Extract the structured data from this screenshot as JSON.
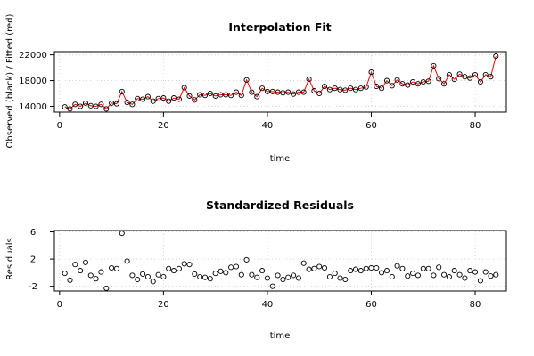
{
  "colors": {
    "observed": "#000000",
    "fitted": "#ff0000",
    "points": "#000000",
    "grid": "#d3d3d3",
    "axis": "#000000",
    "background": "#ffffff"
  },
  "chart_data": [
    {
      "type": "line",
      "title": "Interpolation Fit",
      "xlabel": "time",
      "ylabel": "Observed (black) / Fitted (red)",
      "xlim": [
        -1,
        86
      ],
      "ylim": [
        13100,
        22500
      ],
      "xticks": [
        0,
        20,
        40,
        60,
        80
      ],
      "yticks": [
        14000,
        18000,
        22000
      ],
      "grid": true,
      "series": [
        {
          "color": "black",
          "style": "points",
          "x": [
            1,
            2,
            3,
            4,
            5,
            6,
            7,
            8,
            9,
            10,
            11,
            12,
            13,
            14,
            15,
            16,
            17,
            18,
            19,
            20,
            21,
            22,
            23,
            24,
            25,
            26,
            27,
            28,
            29,
            30,
            31,
            32,
            33,
            34,
            35,
            36,
            37,
            38,
            39,
            40,
            41,
            42,
            43,
            44,
            45,
            46,
            47,
            48,
            49,
            50,
            51,
            52,
            53,
            54,
            55,
            56,
            57,
            58,
            59,
            60,
            61,
            62,
            63,
            64,
            65,
            66,
            67,
            68,
            69,
            70,
            71,
            72,
            73,
            74,
            75,
            76,
            77,
            78,
            79,
            80,
            81,
            82,
            83,
            84
          ],
          "values": [
            13900,
            13600,
            14300,
            14000,
            14500,
            14100,
            14000,
            14300,
            13600,
            14500,
            14400,
            16300,
            14600,
            14300,
            15200,
            15100,
            15500,
            14800,
            15200,
            15300,
            14800,
            15300,
            15100,
            16900,
            15600,
            15000,
            15800,
            15700,
            16000,
            15600,
            15800,
            15800,
            15700,
            16200,
            15700,
            18100,
            16200,
            15500,
            16800,
            16300,
            16300,
            16200,
            16100,
            16200,
            15900,
            16200,
            16200,
            18200,
            16400,
            16000,
            17100,
            16600,
            16800,
            16600,
            16500,
            16800,
            16600,
            16800,
            17000,
            19300,
            17100,
            16800,
            18000,
            17200,
            18100,
            17500,
            17300,
            17800,
            17500,
            17800,
            17900,
            20300,
            18300,
            17500,
            18900,
            18200,
            19000,
            18600,
            18400,
            18900,
            17800,
            18900,
            18600,
            21800
          ]
        },
        {
          "color": "red",
          "style": "line",
          "x": [
            1,
            2,
            3,
            4,
            5,
            6,
            7,
            8,
            9,
            10,
            11,
            12,
            13,
            14,
            15,
            16,
            17,
            18,
            19,
            20,
            21,
            22,
            23,
            24,
            25,
            26,
            27,
            28,
            29,
            30,
            31,
            32,
            33,
            34,
            35,
            36,
            37,
            38,
            39,
            40,
            41,
            42,
            43,
            44,
            45,
            46,
            47,
            48,
            49,
            50,
            51,
            52,
            53,
            54,
            55,
            56,
            57,
            58,
            59,
            60,
            61,
            62,
            63,
            64,
            65,
            66,
            67,
            68,
            69,
            70,
            71,
            72,
            73,
            74,
            75,
            76,
            77,
            78,
            79,
            80,
            81,
            82,
            83,
            84
          ],
          "values": [
            13900,
            13600,
            14300,
            14000,
            14500,
            14100,
            14000,
            14300,
            13600,
            14500,
            14400,
            16300,
            14600,
            14300,
            15200,
            15100,
            15500,
            14800,
            15200,
            15300,
            14800,
            15300,
            15100,
            16900,
            15600,
            15000,
            15800,
            15700,
            16000,
            15600,
            15800,
            15800,
            15700,
            16200,
            15700,
            18100,
            16200,
            15500,
            16800,
            16300,
            16300,
            16200,
            16100,
            16200,
            15900,
            16200,
            16200,
            18200,
            16400,
            16000,
            17100,
            16600,
            16800,
            16600,
            16500,
            16800,
            16600,
            16800,
            17000,
            19300,
            17100,
            16800,
            18000,
            17200,
            18100,
            17500,
            17300,
            17800,
            17500,
            17800,
            17900,
            20300,
            18300,
            17500,
            18900,
            18200,
            19000,
            18600,
            18400,
            18900,
            17800,
            18900,
            18600,
            21800
          ]
        }
      ]
    },
    {
      "type": "scatter",
      "title": "Standardized Residuals",
      "xlabel": "time",
      "ylabel": "Residuals",
      "xlim": [
        -1,
        86
      ],
      "ylim": [
        -2.7,
        6.2
      ],
      "xticks": [
        0,
        20,
        40,
        60,
        80
      ],
      "yticks": [
        -2,
        2,
        6
      ],
      "grid": true,
      "series": [
        {
          "color": "black",
          "style": "points",
          "x": [
            1,
            2,
            3,
            4,
            5,
            6,
            7,
            8,
            9,
            10,
            11,
            12,
            13,
            14,
            15,
            16,
            17,
            18,
            19,
            20,
            21,
            22,
            23,
            24,
            25,
            26,
            27,
            28,
            29,
            30,
            31,
            32,
            33,
            34,
            35,
            36,
            37,
            38,
            39,
            40,
            41,
            42,
            43,
            44,
            45,
            46,
            47,
            48,
            49,
            50,
            51,
            52,
            53,
            54,
            55,
            56,
            57,
            58,
            59,
            60,
            61,
            62,
            63,
            64,
            65,
            66,
            67,
            68,
            69,
            70,
            71,
            72,
            73,
            74,
            75,
            76,
            77,
            78,
            79,
            80,
            81,
            82,
            83,
            84
          ],
          "values": [
            -0.1,
            -1.1,
            1.2,
            0.3,
            1.5,
            -0.4,
            -0.9,
            0.1,
            -2.3,
            0.7,
            0.6,
            5.8,
            1.7,
            -0.4,
            -1.0,
            -0.2,
            -0.6,
            -1.3,
            -0.3,
            -0.6,
            0.6,
            0.3,
            0.6,
            1.3,
            1.2,
            -0.2,
            -0.6,
            -0.7,
            -0.9,
            -0.1,
            0.2,
            0.0,
            0.8,
            0.9,
            -0.3,
            1.9,
            -0.3,
            -0.7,
            0.3,
            -0.8,
            -2.0,
            -0.4,
            -1.0,
            -0.7,
            -0.4,
            -0.8,
            1.4,
            0.5,
            0.6,
            0.9,
            0.7,
            -0.6,
            -0.1,
            -0.8,
            -1.0,
            0.3,
            0.5,
            0.3,
            0.6,
            0.7,
            0.7,
            0.0,
            0.3,
            -0.6,
            1.0,
            0.6,
            -0.5,
            -0.1,
            -0.4,
            0.6,
            0.6,
            -0.4,
            0.8,
            -0.3,
            -0.6,
            0.3,
            -0.3,
            -0.8,
            0.3,
            0.1,
            -1.2,
            0.1,
            -0.5,
            -0.3
          ]
        }
      ]
    }
  ]
}
